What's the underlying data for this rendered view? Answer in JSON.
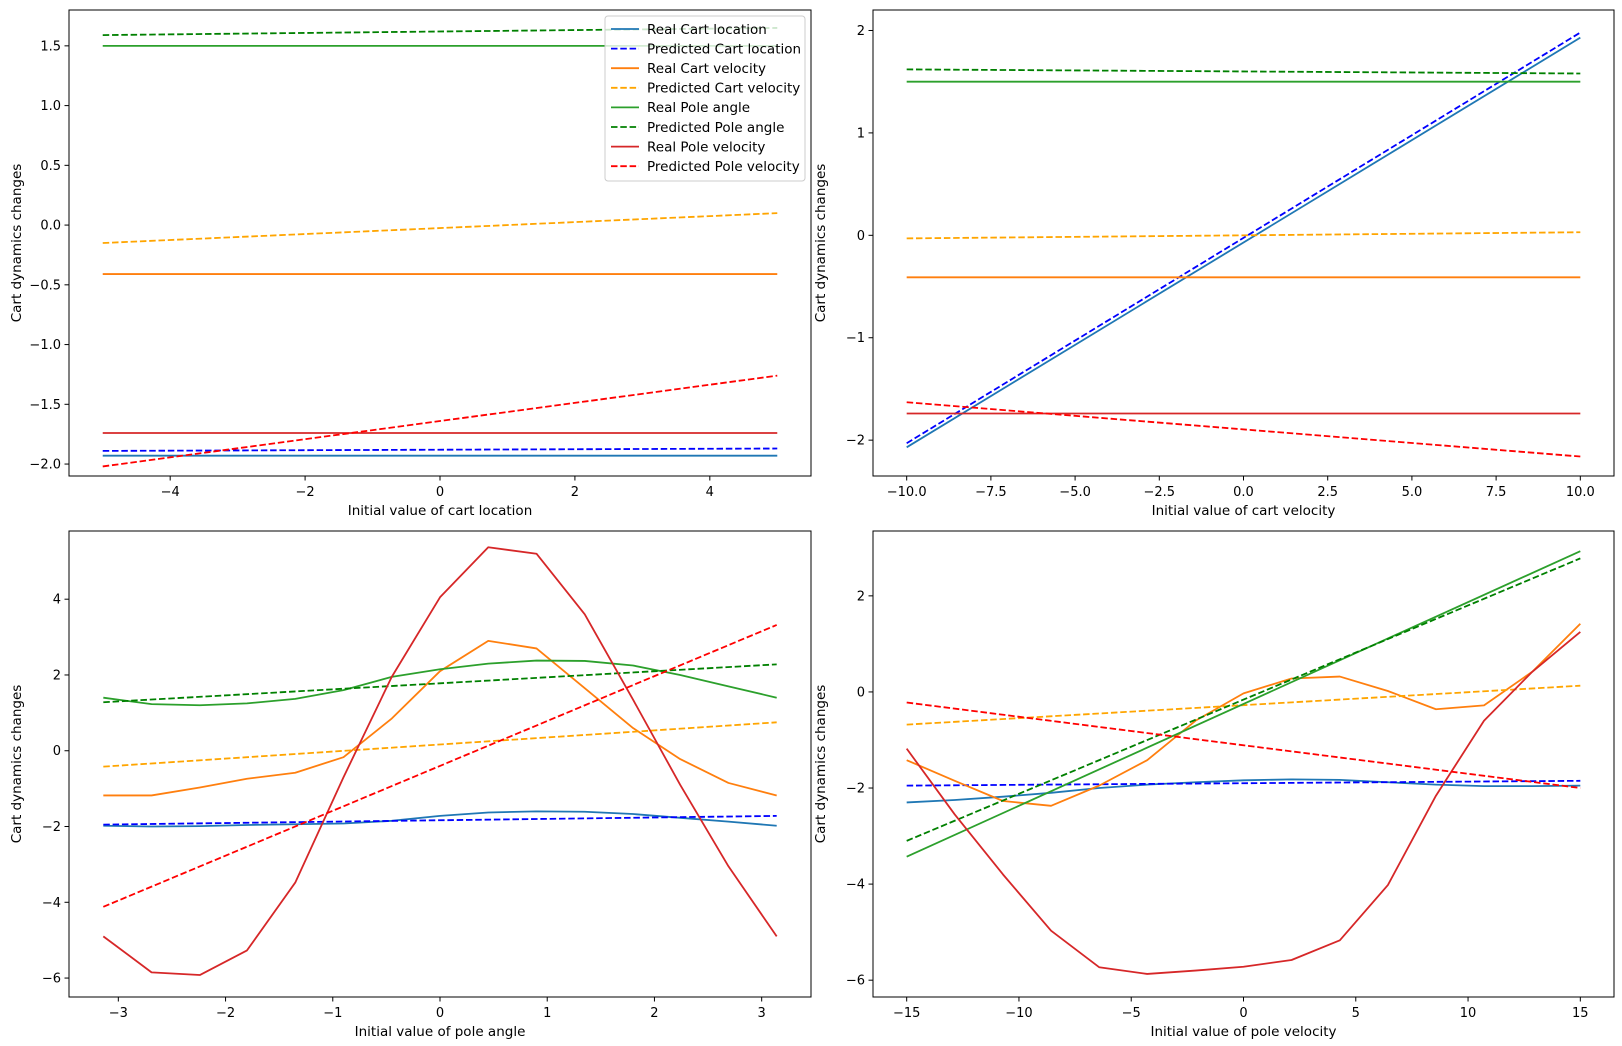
{
  "colors": {
    "real_cart_location": "#1f77b4",
    "pred_cart_location": "#0000ff",
    "real_cart_velocity": "#ff7f0e",
    "pred_cart_velocity": "#ffa500",
    "real_pole_angle": "#2ca02c",
    "pred_pole_angle": "#008000",
    "real_pole_velocity": "#d62728",
    "pred_pole_velocity": "#ff0000"
  },
  "chart_data": [
    {
      "type": "line",
      "xlabel": "Initial value of cart location",
      "ylabel": "Cart dynamics changes",
      "xlim": [
        -5.5,
        5.5
      ],
      "ylim": [
        -2.1,
        1.8
      ],
      "xticks": [
        -4,
        -2,
        0,
        2,
        4
      ],
      "yticks": [
        -2.0,
        -1.5,
        -1.0,
        -0.5,
        0.0,
        0.5,
        1.0,
        1.5
      ],
      "legend_position": "top-right",
      "series": [
        {
          "name": "Real Cart location",
          "color_key": "real_cart_location",
          "dash": false,
          "x": [
            -5,
            5
          ],
          "y": [
            -1.93,
            -1.93
          ]
        },
        {
          "name": "Predicted Cart location",
          "color_key": "pred_cart_location",
          "dash": true,
          "x": [
            -5,
            5
          ],
          "y": [
            -1.89,
            -1.87
          ]
        },
        {
          "name": "Real Cart velocity",
          "color_key": "real_cart_velocity",
          "dash": false,
          "x": [
            -5,
            5
          ],
          "y": [
            -0.41,
            -0.41
          ]
        },
        {
          "name": "Predicted Cart velocity",
          "color_key": "pred_cart_velocity",
          "dash": true,
          "x": [
            -5,
            5
          ],
          "y": [
            -0.15,
            0.1
          ]
        },
        {
          "name": "Real Pole angle",
          "color_key": "real_pole_angle",
          "dash": false,
          "x": [
            -5,
            5
          ],
          "y": [
            1.5,
            1.5
          ]
        },
        {
          "name": "Predicted Pole angle",
          "color_key": "pred_pole_angle",
          "dash": true,
          "x": [
            -5,
            5
          ],
          "y": [
            1.59,
            1.65
          ]
        },
        {
          "name": "Real Pole velocity",
          "color_key": "real_pole_velocity",
          "dash": false,
          "x": [
            -5,
            5
          ],
          "y": [
            -1.74,
            -1.74
          ]
        },
        {
          "name": "Predicted Pole velocity",
          "color_key": "pred_pole_velocity",
          "dash": true,
          "x": [
            -5,
            5
          ],
          "y": [
            -2.02,
            -1.26
          ]
        }
      ]
    },
    {
      "type": "line",
      "xlabel": "Initial value of cart velocity",
      "ylabel": "Cart dynamics changes",
      "xlim": [
        -11,
        11
      ],
      "ylim": [
        -2.35,
        2.2
      ],
      "xticks": [
        -10.0,
        -7.5,
        -5.0,
        -2.5,
        0.0,
        2.5,
        5.0,
        7.5,
        10.0
      ],
      "yticks": [
        -2,
        -1,
        0,
        1,
        2
      ],
      "series": [
        {
          "name": "Real Cart location",
          "color_key": "real_cart_location",
          "dash": false,
          "x": [
            -10,
            10
          ],
          "y": [
            -2.07,
            1.93
          ]
        },
        {
          "name": "Predicted Cart location",
          "color_key": "pred_cart_location",
          "dash": true,
          "x": [
            -10,
            10
          ],
          "y": [
            -2.03,
            1.98
          ]
        },
        {
          "name": "Real Cart velocity",
          "color_key": "real_cart_velocity",
          "dash": false,
          "x": [
            -10,
            10
          ],
          "y": [
            -0.41,
            -0.41
          ]
        },
        {
          "name": "Predicted Cart velocity",
          "color_key": "pred_cart_velocity",
          "dash": true,
          "x": [
            -10,
            10
          ],
          "y": [
            -0.03,
            0.03
          ]
        },
        {
          "name": "Real Pole angle",
          "color_key": "real_pole_angle",
          "dash": false,
          "x": [
            -10,
            10
          ],
          "y": [
            1.5,
            1.5
          ]
        },
        {
          "name": "Predicted Pole angle",
          "color_key": "pred_pole_angle",
          "dash": true,
          "x": [
            -10,
            10
          ],
          "y": [
            1.62,
            1.58
          ]
        },
        {
          "name": "Real Pole velocity",
          "color_key": "real_pole_velocity",
          "dash": false,
          "x": [
            -10,
            10
          ],
          "y": [
            -1.74,
            -1.74
          ]
        },
        {
          "name": "Predicted Pole velocity",
          "color_key": "pred_pole_velocity",
          "dash": true,
          "x": [
            -10,
            10
          ],
          "y": [
            -1.63,
            -2.16
          ]
        }
      ]
    },
    {
      "type": "line",
      "xlabel": "Initial value of pole angle",
      "ylabel": "Cart dynamics changes",
      "xlim": [
        -3.46,
        3.46
      ],
      "ylim": [
        -6.5,
        5.8
      ],
      "xticks": [
        -3,
        -2,
        -1,
        0,
        1,
        2,
        3
      ],
      "yticks": [
        -6,
        -4,
        -2,
        0,
        2,
        4
      ],
      "series": [
        {
          "name": "Real Cart location",
          "color_key": "real_cart_location",
          "dash": false,
          "x": [
            -3.14,
            -2.69,
            -2.24,
            -1.8,
            -1.35,
            -0.9,
            -0.45,
            0,
            0.45,
            0.9,
            1.35,
            1.8,
            2.24,
            2.69,
            3.14
          ],
          "y": [
            -1.98,
            -2.0,
            -1.99,
            -1.96,
            -1.94,
            -1.92,
            -1.85,
            -1.72,
            -1.63,
            -1.6,
            -1.61,
            -1.67,
            -1.77,
            -1.87,
            -1.98
          ]
        },
        {
          "name": "Predicted Cart location",
          "color_key": "pred_cart_location",
          "dash": true,
          "x": [
            -3.14,
            3.14
          ],
          "y": [
            -1.95,
            -1.72
          ]
        },
        {
          "name": "Real Cart velocity",
          "color_key": "real_cart_velocity",
          "dash": false,
          "x": [
            -3.14,
            -2.69,
            -2.24,
            -1.8,
            -1.35,
            -0.9,
            -0.45,
            0,
            0.45,
            0.9,
            1.35,
            1.8,
            2.24,
            2.69,
            3.14
          ],
          "y": [
            -1.18,
            -1.18,
            -0.97,
            -0.74,
            -0.58,
            -0.17,
            0.85,
            2.1,
            2.9,
            2.7,
            1.65,
            0.6,
            -0.22,
            -0.85,
            -1.18
          ]
        },
        {
          "name": "Predicted Cart velocity",
          "color_key": "pred_cart_velocity",
          "dash": true,
          "x": [
            -3.14,
            3.14
          ],
          "y": [
            -0.42,
            0.75
          ]
        },
        {
          "name": "Real Pole angle",
          "color_key": "real_pole_angle",
          "dash": false,
          "x": [
            -3.14,
            -2.69,
            -2.24,
            -1.8,
            -1.35,
            -0.9,
            -0.45,
            0,
            0.45,
            0.9,
            1.35,
            1.8,
            2.24,
            2.69,
            3.14
          ],
          "y": [
            1.4,
            1.23,
            1.2,
            1.25,
            1.37,
            1.6,
            1.95,
            2.15,
            2.3,
            2.38,
            2.37,
            2.25,
            2.0,
            1.7,
            1.4
          ]
        },
        {
          "name": "Predicted Pole angle",
          "color_key": "pred_pole_angle",
          "dash": true,
          "x": [
            -3.14,
            3.14
          ],
          "y": [
            1.28,
            2.28
          ]
        },
        {
          "name": "Real Pole velocity",
          "color_key": "real_pole_velocity",
          "dash": false,
          "x": [
            -3.14,
            -2.69,
            -2.24,
            -1.8,
            -1.35,
            -0.9,
            -0.45,
            0,
            0.45,
            0.9,
            1.35,
            1.8,
            2.24,
            2.69,
            3.14
          ],
          "y": [
            -4.9,
            -5.85,
            -5.92,
            -5.27,
            -3.48,
            -0.7,
            1.95,
            4.05,
            5.37,
            5.2,
            3.6,
            1.35,
            -0.9,
            -3.05,
            -4.9
          ]
        },
        {
          "name": "Predicted Pole velocity",
          "color_key": "pred_pole_velocity",
          "dash": true,
          "x": [
            -3.14,
            3.14
          ],
          "y": [
            -4.12,
            3.32
          ]
        }
      ]
    },
    {
      "type": "line",
      "xlabel": "Initial value of pole velocity",
      "ylabel": "Cart dynamics changes",
      "xlim": [
        -16.5,
        16.5
      ],
      "ylim": [
        -6.35,
        3.35
      ],
      "xticks": [
        -15,
        -10,
        -5,
        0,
        5,
        10,
        15
      ],
      "yticks": [
        -6,
        -4,
        -2,
        0,
        2
      ],
      "series": [
        {
          "name": "Real Cart location",
          "color_key": "real_cart_location",
          "dash": false,
          "x": [
            -15,
            -12.86,
            -10.71,
            -8.57,
            -6.43,
            -4.29,
            -2.14,
            0,
            2.14,
            4.29,
            6.43,
            8.57,
            10.71,
            12.86,
            15
          ],
          "y": [
            -2.3,
            -2.25,
            -2.18,
            -2.1,
            -2.0,
            -1.93,
            -1.88,
            -1.84,
            -1.82,
            -1.83,
            -1.88,
            -1.93,
            -1.96,
            -1.96,
            -1.95
          ]
        },
        {
          "name": "Predicted Cart location",
          "color_key": "pred_cart_location",
          "dash": true,
          "x": [
            -15,
            15
          ],
          "y": [
            -1.95,
            -1.85
          ]
        },
        {
          "name": "Real Cart velocity",
          "color_key": "real_cart_velocity",
          "dash": false,
          "x": [
            -15,
            -12.86,
            -10.71,
            -8.57,
            -6.43,
            -4.29,
            -2.14,
            0,
            2.14,
            4.29,
            6.43,
            8.57,
            10.71,
            12.86,
            15
          ],
          "y": [
            -1.42,
            -1.85,
            -2.27,
            -2.37,
            -1.95,
            -1.42,
            -0.6,
            -0.03,
            0.28,
            0.32,
            0.02,
            -0.36,
            -0.28,
            0.42,
            1.42
          ]
        },
        {
          "name": "Predicted Cart velocity",
          "color_key": "pred_cart_velocity",
          "dash": true,
          "x": [
            -15,
            15
          ],
          "y": [
            -0.68,
            0.13
          ]
        },
        {
          "name": "Real Pole angle",
          "color_key": "real_pole_angle",
          "dash": false,
          "x": [
            -15,
            15
          ],
          "y": [
            -3.43,
            2.93
          ]
        },
        {
          "name": "Predicted Pole angle",
          "color_key": "pred_pole_angle",
          "dash": true,
          "x": [
            -15,
            15
          ],
          "y": [
            -3.1,
            2.78
          ]
        },
        {
          "name": "Real Pole velocity",
          "color_key": "real_pole_velocity",
          "dash": false,
          "x": [
            -15,
            -12.86,
            -10.71,
            -8.57,
            -6.43,
            -4.29,
            -2.14,
            0,
            2.14,
            4.29,
            6.43,
            8.57,
            10.71,
            12.86,
            15
          ],
          "y": [
            -1.18,
            -2.55,
            -3.8,
            -4.97,
            -5.73,
            -5.87,
            -5.8,
            -5.72,
            -5.58,
            -5.17,
            -4.02,
            -2.16,
            -0.6,
            0.42,
            1.25
          ]
        },
        {
          "name": "Predicted Pole velocity",
          "color_key": "pred_pole_velocity",
          "dash": true,
          "x": [
            -15,
            15
          ],
          "y": [
            -0.22,
            -2.0
          ]
        }
      ]
    }
  ]
}
